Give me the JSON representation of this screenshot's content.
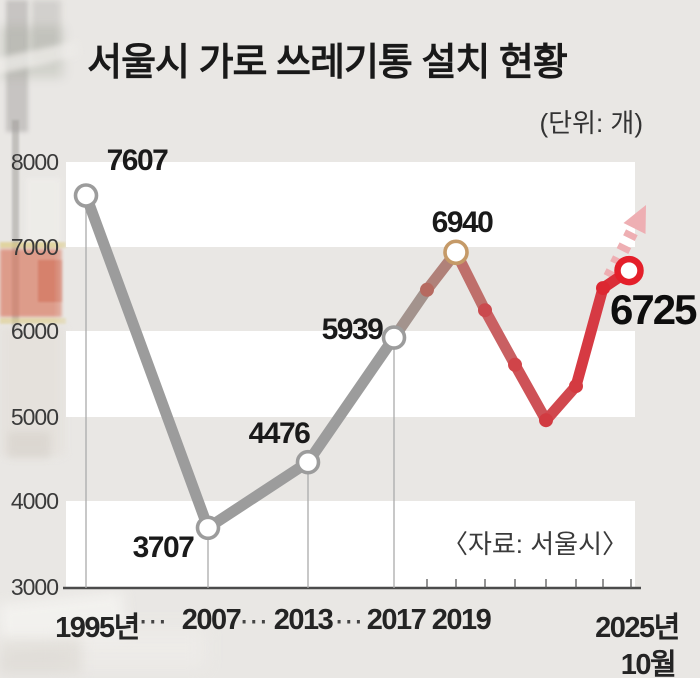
{
  "title": "서울시 가로 쓰레기통 설치 현황",
  "unit_label": "(단위: 개)",
  "source_label": "〈자료: 서울시〉",
  "colors": {
    "page_bg": "#e9e7e4",
    "band_white": "#ffffff",
    "axis": "#4b4b4b",
    "past_line": "#9c9c9c",
    "recent_line": "#da2e38",
    "ring_past": "#9c9c9c",
    "ring_2019": "#c59a68",
    "ring_latest": "#e41f2a",
    "trend_arrow": "#eeafb3"
  },
  "y_axis": {
    "ticks": [
      "8000",
      "7000",
      "6000",
      "5000",
      "4000",
      "3000"
    ],
    "min": 3000,
    "max": 8000
  },
  "x_axis": {
    "labels": [
      "1995년",
      "⋯",
      "2007",
      "⋯",
      "2013",
      "⋯",
      "2017",
      "2019",
      "2025년"
    ],
    "sub_label": "10월"
  },
  "chart_data": {
    "type": "line",
    "title": "서울시 가로 쓰레기통 설치 현황",
    "unit": "개",
    "source": "서울시",
    "ylim": [
      3000,
      8000
    ],
    "grid": "horizontal-bands",
    "legend": "none",
    "minor_tick_years": [
      "2018",
      "2019",
      "2020",
      "2021",
      "2022",
      "2023",
      "2024",
      "2025"
    ],
    "trend_arrow": "up",
    "points": [
      {
        "year": "1995",
        "value": 7607,
        "label": "7607",
        "era": "past",
        "marker": "open-circle"
      },
      {
        "year": "2007",
        "value": 3707,
        "label": "3707",
        "era": "past",
        "marker": "open-circle"
      },
      {
        "year": "2013",
        "value": 4476,
        "label": "4476",
        "era": "past",
        "marker": "open-circle"
      },
      {
        "year": "2017",
        "value": 5939,
        "label": "5939",
        "era": "past",
        "marker": "open-circle"
      },
      {
        "year": "2018",
        "value": 6500,
        "estimated": true,
        "era": "transition",
        "marker": "dot"
      },
      {
        "year": "2019",
        "value": 6940,
        "label": "6940",
        "era": "transition",
        "marker": "open-circle"
      },
      {
        "year": "2020",
        "value": 6260,
        "estimated": true,
        "era": "recent",
        "marker": "dot"
      },
      {
        "year": "2021",
        "value": 5620,
        "estimated": true,
        "era": "recent",
        "marker": "dot"
      },
      {
        "year": "2022",
        "value": 4970,
        "estimated": true,
        "era": "recent",
        "marker": "dot"
      },
      {
        "year": "2023",
        "value": 5370,
        "estimated": true,
        "era": "recent",
        "marker": "dot"
      },
      {
        "year": "2024",
        "value": 6520,
        "estimated": true,
        "era": "recent",
        "marker": "dot"
      },
      {
        "year": "2025-10",
        "value": 6725,
        "label": "6725",
        "era": "recent",
        "marker": "open-circle"
      }
    ]
  }
}
